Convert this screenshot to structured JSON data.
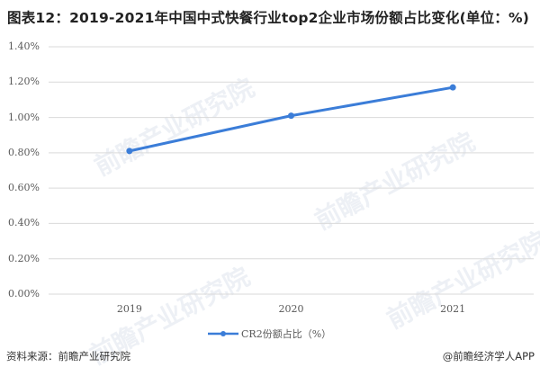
{
  "header": {
    "title": "图表12：2019-2021年中国中式快餐行业top2企业市场份额占比变化(单位：%)"
  },
  "watermark": {
    "text": "前瞻产业研究院"
  },
  "footer": {
    "source": "资料来源：前瞻产业研究院",
    "credit": "@前瞻经济学人APP"
  },
  "colors": {
    "series": "#3b7dd8",
    "grid": "#d9d9d9",
    "axis_text": "#595959"
  },
  "chart_data": {
    "type": "line",
    "title": "图表12：2019-2021年中国中式快餐行业top2企业市场份额占比变化(单位：%)",
    "xlabel": "",
    "ylabel": "",
    "categories": [
      "2019",
      "2020",
      "2021"
    ],
    "series": [
      {
        "name": "CR2份额占比（%）",
        "values": [
          0.81,
          1.01,
          1.17
        ],
        "color": "#3b7dd8",
        "marker": "circle"
      }
    ],
    "ylim": [
      0,
      1.4
    ],
    "yticks": [
      "0.00%",
      "0.20%",
      "0.40%",
      "0.60%",
      "0.80%",
      "1.00%",
      "1.20%",
      "1.40%"
    ],
    "grid": true,
    "legend_position": "bottom",
    "unit": "%"
  }
}
